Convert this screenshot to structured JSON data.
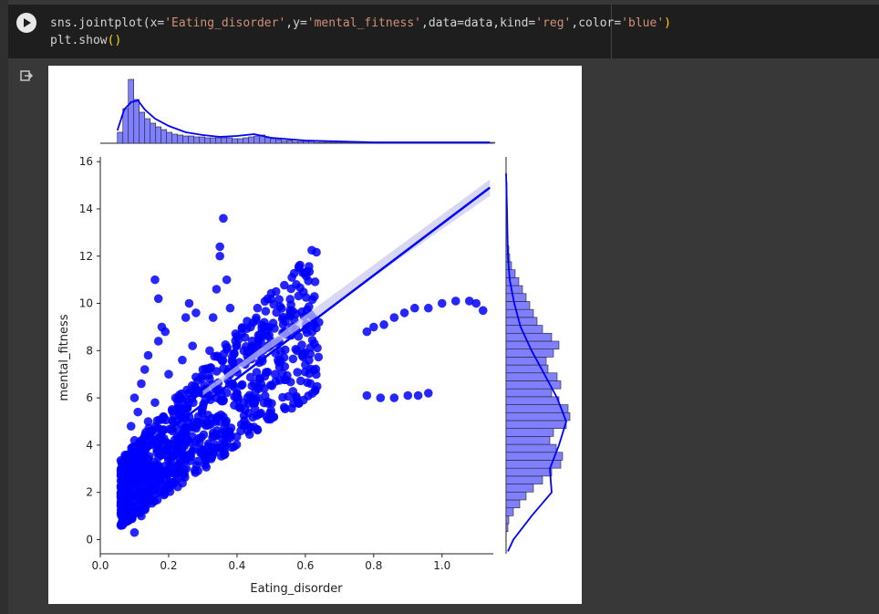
{
  "code_cell": {
    "line1_prefix": "sns.jointplot(x=",
    "line1_x": "'Eating_disorder'",
    "line1_mid1": ",y=",
    "line1_y": "'mental_fitness'",
    "line1_mid2": ",data=data,kind=",
    "line1_kind": "'reg'",
    "line1_mid3": ",color=",
    "line1_color": "'blue'",
    "line2_prefix": "plt.show",
    "run_icon": "play-icon",
    "output_icon": "output-arrow-icon"
  },
  "colors": {
    "series": "#0000ff",
    "hist_fill": "#7f7fff",
    "ci_band": "#c8c8f0",
    "editor_bg": "#1e1e1e",
    "page_bg": "#383838",
    "string_color": "#ce9178",
    "paren_color": "#ffd700"
  },
  "chart_data": {
    "type": "scatter",
    "xlabel": "Eating_disorder",
    "ylabel": "mental_fitness",
    "xlim": [
      0.0,
      1.15
    ],
    "ylim": [
      -0.6,
      16.2
    ],
    "x_ticks": [
      "0.0",
      "0.2",
      "0.4",
      "0.6",
      "0.8",
      "1.0"
    ],
    "y_ticks": [
      "0",
      "2",
      "4",
      "6",
      "8",
      "10",
      "12",
      "14",
      "16"
    ],
    "regression_line": {
      "x": [
        0.05,
        1.14
      ],
      "y": [
        3.0,
        14.9
      ]
    },
    "marginal_x_hist_peak": 0.1,
    "marginal_y_hist_peak": 4.5,
    "points": [
      [
        0.06,
        0.6
      ],
      [
        0.07,
        1.2
      ],
      [
        0.08,
        1.8
      ],
      [
        0.07,
        2.4
      ],
      [
        0.09,
        3.0
      ],
      [
        0.08,
        3.6
      ],
      [
        0.1,
        4.2
      ],
      [
        0.09,
        4.8
      ],
      [
        0.11,
        5.4
      ],
      [
        0.1,
        6.0
      ],
      [
        0.12,
        6.6
      ],
      [
        0.13,
        7.2
      ],
      [
        0.14,
        7.8
      ],
      [
        0.12,
        3.2
      ],
      [
        0.15,
        4.6
      ],
      [
        0.16,
        5.8
      ],
      [
        0.17,
        8.4
      ],
      [
        0.18,
        9.0
      ],
      [
        0.17,
        10.2
      ],
      [
        0.16,
        11.0
      ],
      [
        0.19,
        8.8
      ],
      [
        0.2,
        7.0
      ],
      [
        0.22,
        6.0
      ],
      [
        0.24,
        7.6
      ],
      [
        0.25,
        9.4
      ],
      [
        0.26,
        10.0
      ],
      [
        0.28,
        9.6
      ],
      [
        0.27,
        8.2
      ],
      [
        0.3,
        7.2
      ],
      [
        0.32,
        8.0
      ],
      [
        0.33,
        9.4
      ],
      [
        0.34,
        10.6
      ],
      [
        0.35,
        12.4
      ],
      [
        0.36,
        13.6
      ],
      [
        0.35,
        12.0
      ],
      [
        0.37,
        11.0
      ],
      [
        0.38,
        9.8
      ],
      [
        0.4,
        8.6
      ],
      [
        0.42,
        8.0
      ],
      [
        0.44,
        9.0
      ],
      [
        0.46,
        9.8
      ],
      [
        0.48,
        9.2
      ],
      [
        0.5,
        8.4
      ],
      [
        0.52,
        7.6
      ],
      [
        0.54,
        8.8
      ],
      [
        0.56,
        9.0
      ],
      [
        0.58,
        8.6
      ],
      [
        0.6,
        7.4
      ],
      [
        0.62,
        8.8
      ],
      [
        0.64,
        9.2
      ],
      [
        0.2,
        3.0
      ],
      [
        0.22,
        3.6
      ],
      [
        0.24,
        4.4
      ],
      [
        0.26,
        5.2
      ],
      [
        0.28,
        6.4
      ],
      [
        0.3,
        5.6
      ],
      [
        0.32,
        6.8
      ],
      [
        0.34,
        6.0
      ],
      [
        0.36,
        5.2
      ],
      [
        0.38,
        7.0
      ],
      [
        0.4,
        6.2
      ],
      [
        0.42,
        5.8
      ],
      [
        0.45,
        6.6
      ],
      [
        0.48,
        6.4
      ],
      [
        0.08,
        2.0
      ],
      [
        0.09,
        1.4
      ],
      [
        0.11,
        2.6
      ],
      [
        0.13,
        3.8
      ],
      [
        0.14,
        5.0
      ],
      [
        0.15,
        2.2
      ],
      [
        0.1,
        0.3
      ],
      [
        0.12,
        1.0
      ],
      [
        0.78,
        8.8
      ],
      [
        0.8,
        9.0
      ],
      [
        0.83,
        9.1
      ],
      [
        0.86,
        9.4
      ],
      [
        0.89,
        9.6
      ],
      [
        0.92,
        9.8
      ],
      [
        0.96,
        9.8
      ],
      [
        1.0,
        10.0
      ],
      [
        1.04,
        10.1
      ],
      [
        1.08,
        10.1
      ],
      [
        1.1,
        10.0
      ],
      [
        1.12,
        9.7
      ],
      [
        0.78,
        6.1
      ],
      [
        0.82,
        6.0
      ],
      [
        0.86,
        6.0
      ],
      [
        0.9,
        6.1
      ],
      [
        0.93,
        6.1
      ],
      [
        0.96,
        6.2
      ]
    ]
  }
}
